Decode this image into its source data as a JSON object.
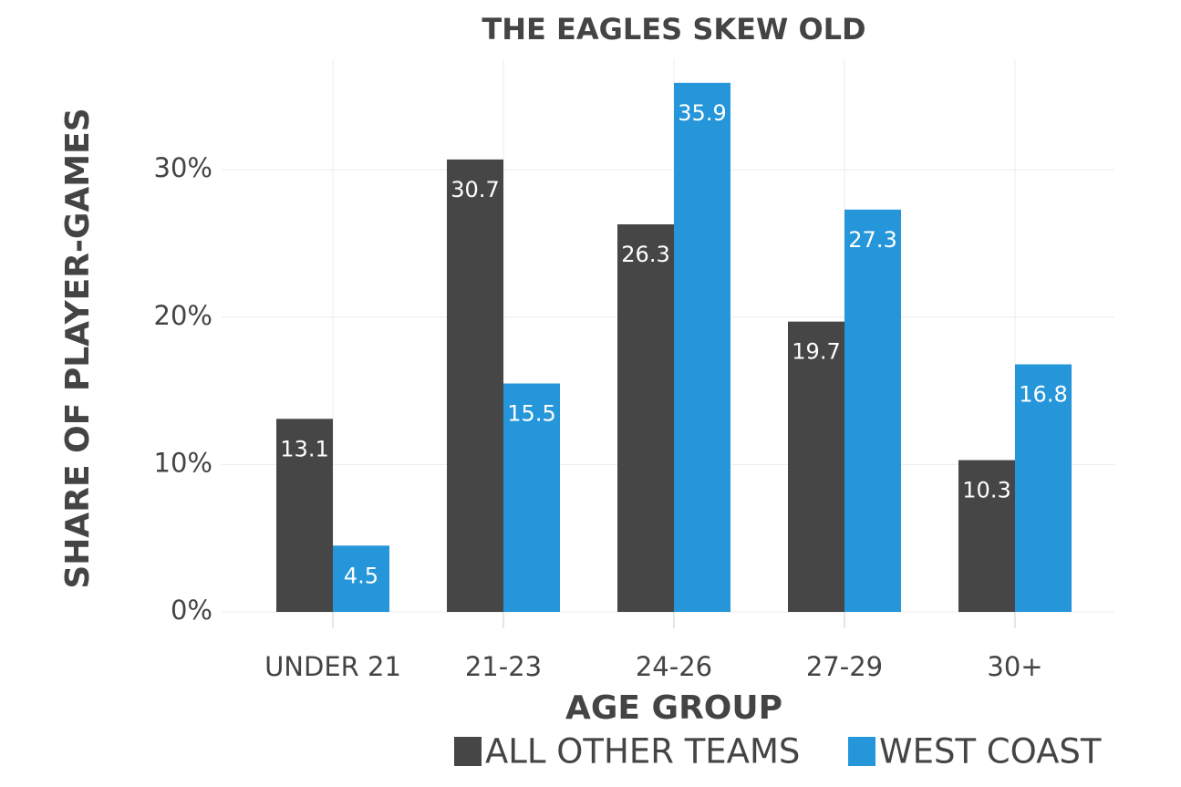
{
  "chart_data": {
    "type": "bar",
    "title": "THE EAGLES SKEW OLD",
    "x_label": "AGE GROUP",
    "y_label": "SHARE OF PLAYER-GAMES",
    "categories": [
      "UNDER 21",
      "21-23",
      "24-26",
      "27-29",
      "30+"
    ],
    "series": [
      {
        "name": "ALL OTHER TEAMS",
        "color": "#464646",
        "values": [
          13.1,
          30.7,
          26.3,
          19.7,
          10.3
        ]
      },
      {
        "name": "WEST COAST",
        "color": "#2596da",
        "values": [
          4.5,
          15.5,
          35.9,
          27.3,
          16.8
        ]
      }
    ],
    "ylim": [
      0,
      37.5
    ],
    "yticks": [
      {
        "value": 0,
        "label": "0%"
      },
      {
        "value": 10,
        "label": "10%"
      },
      {
        "value": 20,
        "label": "20%"
      },
      {
        "value": 30,
        "label": "30%"
      }
    ],
    "grid": true
  }
}
